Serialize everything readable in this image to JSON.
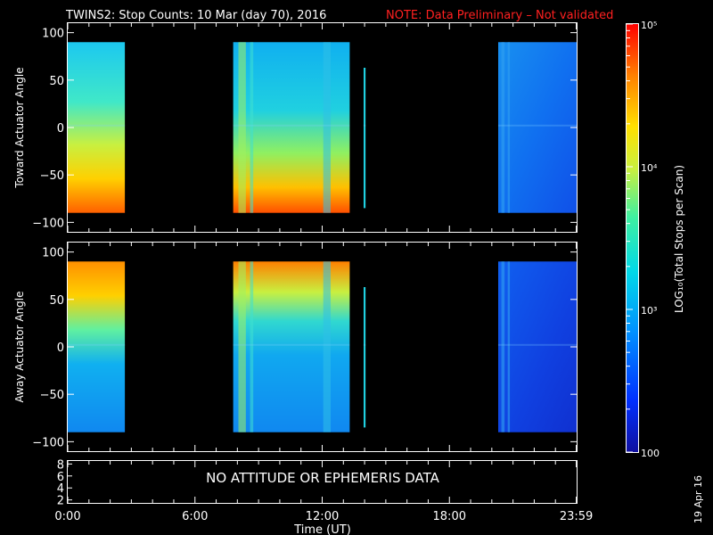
{
  "header": {
    "title": "TWINS2: Stop Counts: 10 Mar (day  70), 2016",
    "note": "NOTE: Data Preliminary – Not validated"
  },
  "colorbar": {
    "label": "LOG₁₀(Total Stops per Scan)",
    "tick_labels": [
      "10⁵",
      "10⁴",
      "10³",
      "100"
    ],
    "tick_values": [
      100000,
      10000,
      1000,
      100
    ],
    "range": [
      100,
      100000
    ],
    "scale": "log",
    "colormap": "rainbow"
  },
  "footer": {
    "date_stamp": "19 Apr 16"
  },
  "chart_data": [
    {
      "type": "heatmap",
      "panel": "toward",
      "ylabel": "Toward Actuator Angle",
      "ylim": [
        -110,
        110
      ],
      "yticks": [
        100,
        50,
        0,
        -50,
        -100
      ],
      "xlim": [
        0,
        24
      ],
      "data_blocks_hours": [
        [
          0,
          2.7
        ],
        [
          7.8,
          13.3
        ],
        [
          13.95,
          14.05
        ],
        [
          20.3,
          24
        ]
      ],
      "zlim": [
        100,
        100000
      ]
    },
    {
      "type": "heatmap",
      "panel": "away",
      "ylabel": "Away Actuator Angle",
      "ylim": [
        -110,
        110
      ],
      "yticks": [
        100,
        50,
        0,
        -50,
        -100
      ],
      "xlim": [
        0,
        24
      ],
      "data_blocks_hours": [
        [
          0,
          2.7
        ],
        [
          7.8,
          13.3
        ],
        [
          13.95,
          14.05
        ],
        [
          20.3,
          24
        ]
      ],
      "zlim": [
        100,
        100000
      ]
    },
    {
      "type": "line",
      "panel": "ephemeris",
      "ylim": [
        1.5,
        8.5
      ],
      "yticks": [
        8,
        6,
        4,
        2
      ],
      "message": "NO ATTITUDE OR EPHEMERIS DATA",
      "xlabel": "Time (UT)",
      "xticks": [
        0,
        6,
        12,
        18,
        23.983
      ],
      "xtick_labels": [
        "0:00",
        "6:00",
        "12:00",
        "18:00",
        "23:59"
      ]
    }
  ]
}
